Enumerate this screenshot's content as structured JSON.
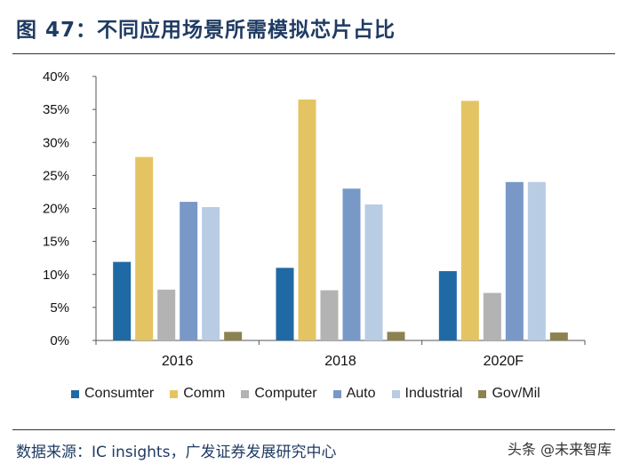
{
  "header": {
    "title": "图 47：不同应用场景所需模拟芯片占比"
  },
  "chart_data": {
    "type": "bar",
    "categories": [
      "2016",
      "2018",
      "2020F"
    ],
    "series": [
      {
        "name": "Consumter",
        "color": "#1f6aa5",
        "values": [
          0.119,
          0.11,
          0.105
        ]
      },
      {
        "name": "Comm",
        "color": "#e4c462",
        "values": [
          0.278,
          0.365,
          0.363
        ]
      },
      {
        "name": "Computer",
        "color": "#b3b3b3",
        "values": [
          0.077,
          0.076,
          0.072
        ]
      },
      {
        "name": "Auto",
        "color": "#7898c8",
        "values": [
          0.21,
          0.23,
          0.24
        ]
      },
      {
        "name": "Industrial",
        "color": "#b8cce4",
        "values": [
          0.202,
          0.206,
          0.24
        ]
      },
      {
        "name": "Gov/Mil",
        "color": "#8c8250",
        "values": [
          0.013,
          0.013,
          0.012
        ]
      }
    ],
    "yticks": [
      "0%",
      "5%",
      "10%",
      "15%",
      "20%",
      "25%",
      "30%",
      "35%",
      "40%"
    ],
    "ylim": [
      0,
      0.4
    ],
    "grid": false,
    "legend_position": "bottom"
  },
  "footer": {
    "source": "数据来源：IC insights，广发证券发展研究中心",
    "watermark": "头条 @未来智库"
  }
}
